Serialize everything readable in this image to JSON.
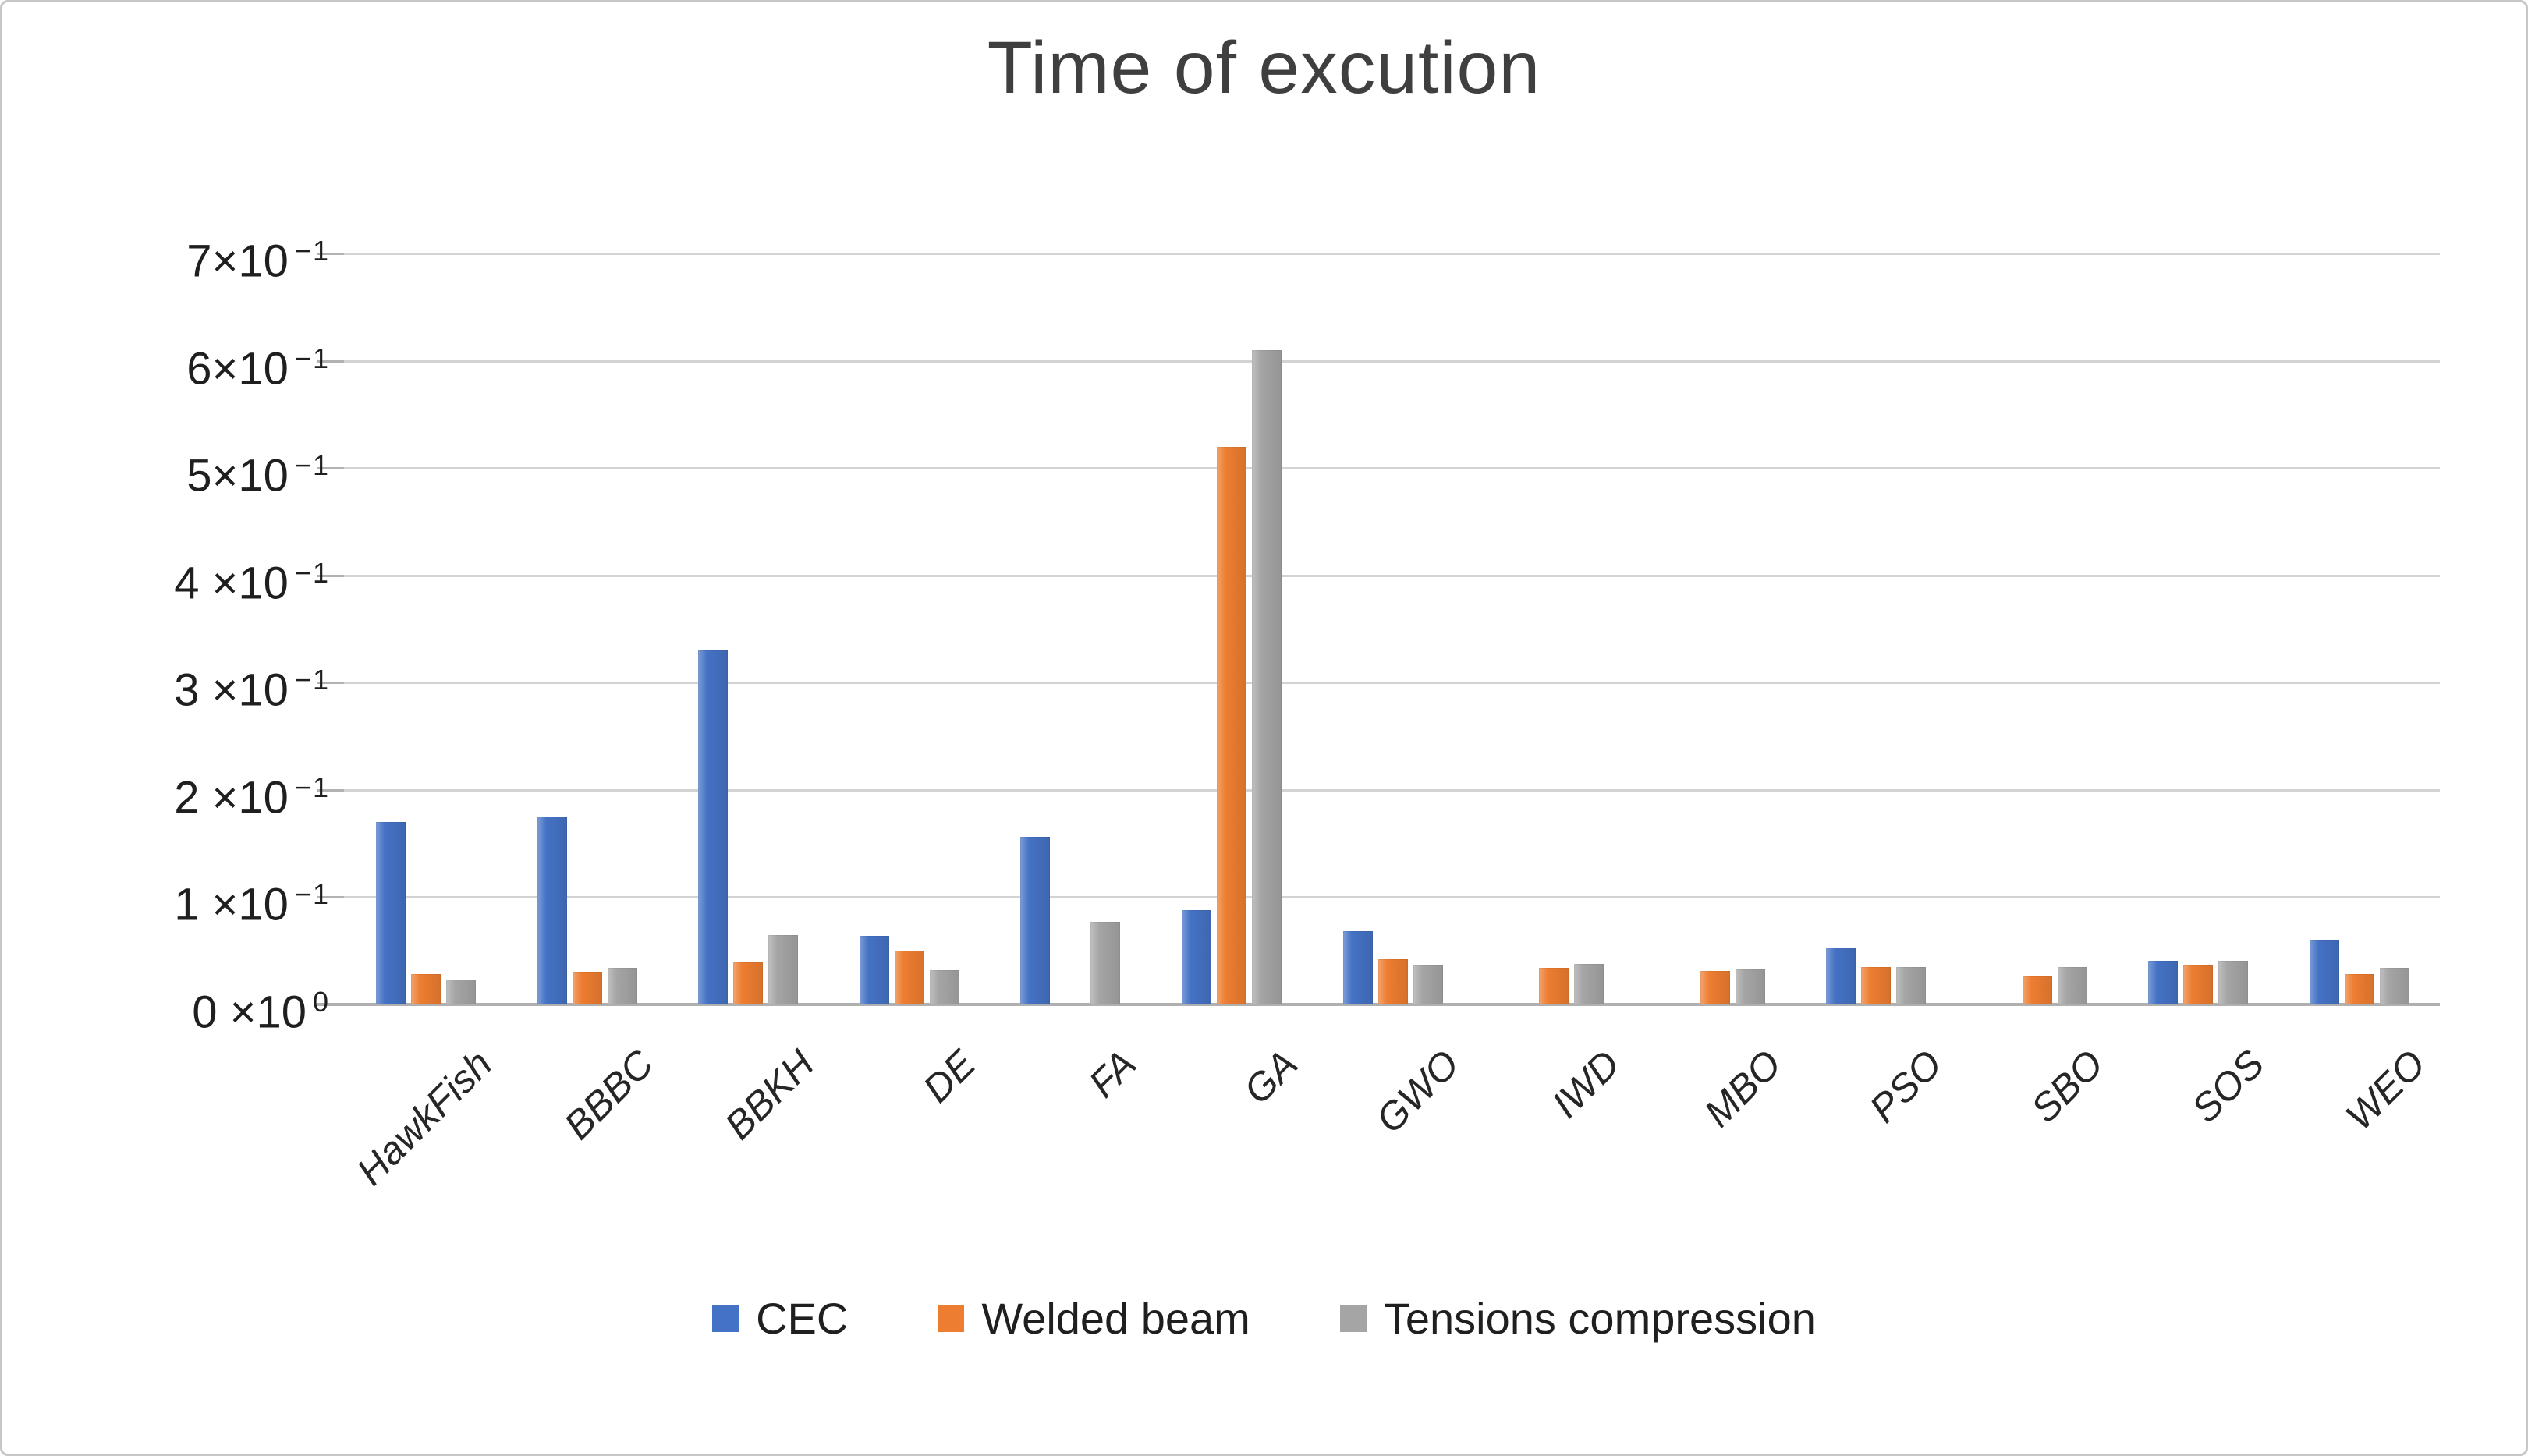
{
  "title": "Time of excution",
  "chart_data": {
    "type": "bar",
    "title": "Time of excution",
    "categories": [
      "HawkFish",
      "BBBC",
      "BBKH",
      "DE",
      "FA",
      "GA",
      "GWO",
      "IWD",
      "MBO",
      "PSO",
      "SBO",
      "SOS",
      "WEO"
    ],
    "series": [
      {
        "name": "CEC",
        "color": "#4472C4",
        "values": [
          0.17,
          0.175,
          0.33,
          0.064,
          0.156,
          0.088,
          0.068,
          null,
          null,
          0.053,
          null,
          0.041,
          0.06
        ]
      },
      {
        "name": "Welded beam",
        "color": "#ED7D31",
        "values": [
          0.028,
          0.03,
          0.039,
          0.05,
          null,
          0.52,
          0.042,
          0.034,
          0.031,
          0.035,
          0.026,
          0.036,
          0.028
        ]
      },
      {
        "name": "Tensions compression",
        "color": "#A5A5A5",
        "values": [
          0.023,
          0.034,
          0.065,
          0.032,
          0.077,
          0.61,
          0.036,
          0.038,
          0.033,
          0.035,
          0.035,
          0.041,
          0.034
        ]
      }
    ],
    "ylim": [
      0,
      0.7
    ],
    "ytick_step": 0.1,
    "yticks": [
      {
        "base": "0 ×10",
        "exp": "0"
      },
      {
        "base": "1 ×10",
        "exp": "−1"
      },
      {
        "base": "2 ×10",
        "exp": "−1"
      },
      {
        "base": "3 ×10",
        "exp": "−1"
      },
      {
        "base": "4 ×10",
        "exp": "−1"
      },
      {
        "base": "5×10",
        "exp": "−1"
      },
      {
        "base": "6×10",
        "exp": "−1"
      },
      {
        "base": "7×10",
        "exp": "−1"
      }
    ],
    "grid": true,
    "legend_position": "bottom",
    "xlabel": "",
    "ylabel": ""
  }
}
